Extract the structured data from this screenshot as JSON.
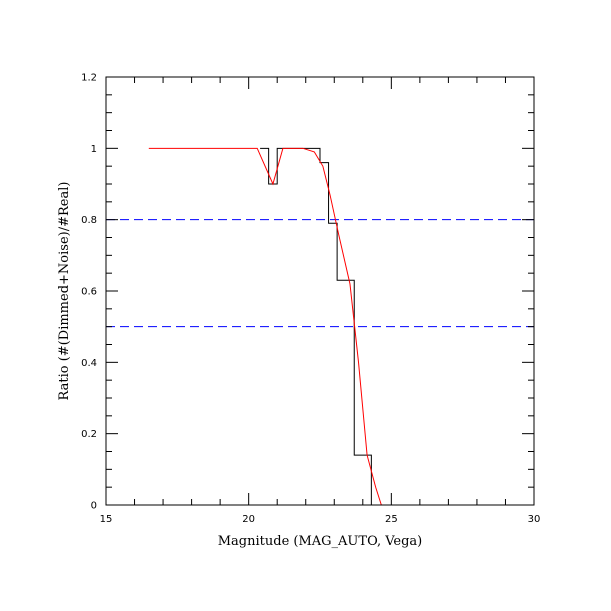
{
  "chart_data": {
    "type": "line",
    "title": "",
    "xlabel": "Magnitude (MAG_AUTO, Vega)",
    "ylabel": "Ratio (#(Dimmed+Noise)/#Real)",
    "xlim": [
      15,
      30
    ],
    "ylim": [
      0,
      1.2
    ],
    "x_ticks": [
      15,
      20,
      25,
      30
    ],
    "x_tick_labels": [
      "15",
      "20",
      "25",
      "30"
    ],
    "y_ticks": [
      0,
      0.2,
      0.4,
      0.6,
      0.8,
      1.0,
      1.2
    ],
    "y_tick_labels": [
      "0",
      "0.2",
      "0.4",
      "0.6",
      "0.8",
      "1",
      "1.2"
    ],
    "grid": false,
    "series": [
      {
        "style": "histogram-step",
        "color": "#000000",
        "bin_edges": [
          20.4,
          20.7,
          21.0,
          21.3,
          21.6,
          21.9,
          22.2,
          22.5,
          22.8,
          23.1,
          23.4,
          23.7,
          24.0,
          24.3,
          24.6
        ],
        "values": [
          1.0,
          0.9,
          1.0,
          1.0,
          1.0,
          1.0,
          1.0,
          0.96,
          0.79,
          0.63,
          0.63,
          0.14,
          0.14,
          0.0
        ]
      },
      {
        "style": "line",
        "color": "#ff0000",
        "x": [
          16.5,
          17.5,
          18.5,
          19.5,
          20.3,
          20.85,
          21.2,
          21.5,
          21.9,
          22.3,
          22.6,
          22.85,
          23.15,
          23.55,
          23.85,
          24.15,
          24.45,
          24.65,
          25.0,
          26.0,
          27.0,
          28.0,
          29.0,
          30.0
        ],
        "y": [
          1.0,
          1.0,
          1.0,
          1.0,
          1.0,
          0.9,
          1.0,
          1.0,
          1.0,
          0.99,
          0.95,
          0.87,
          0.76,
          0.62,
          0.4,
          0.14,
          0.05,
          0.0,
          0.0,
          0.0,
          0.0,
          0.0,
          0.0,
          0.0
        ]
      }
    ],
    "reference_lines": [
      {
        "axis": "y",
        "value": 0.8,
        "color": "#0000ff",
        "style": "dashed"
      },
      {
        "axis": "y",
        "value": 0.5,
        "color": "#0000ff",
        "style": "dashed"
      }
    ]
  }
}
